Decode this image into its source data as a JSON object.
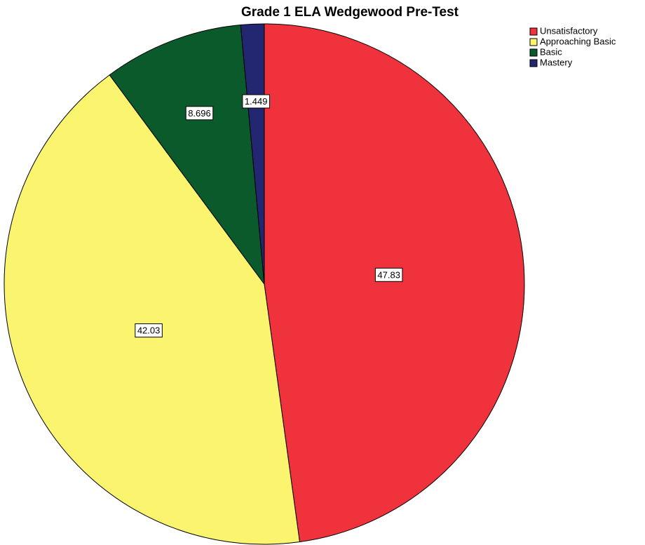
{
  "chart_data": {
    "type": "pie",
    "title": "Grade 1 ELA Wedgewood Pre-Test",
    "categories": [
      "Unsatisfactory",
      "Approaching Basic",
      "Basic",
      "Mastery"
    ],
    "values": [
      47.83,
      42.03,
      8.696,
      1.449
    ],
    "colors": [
      "#f0323c",
      "#fbf46e",
      "#0b5a2c",
      "#232670"
    ],
    "legend": "top-right"
  }
}
